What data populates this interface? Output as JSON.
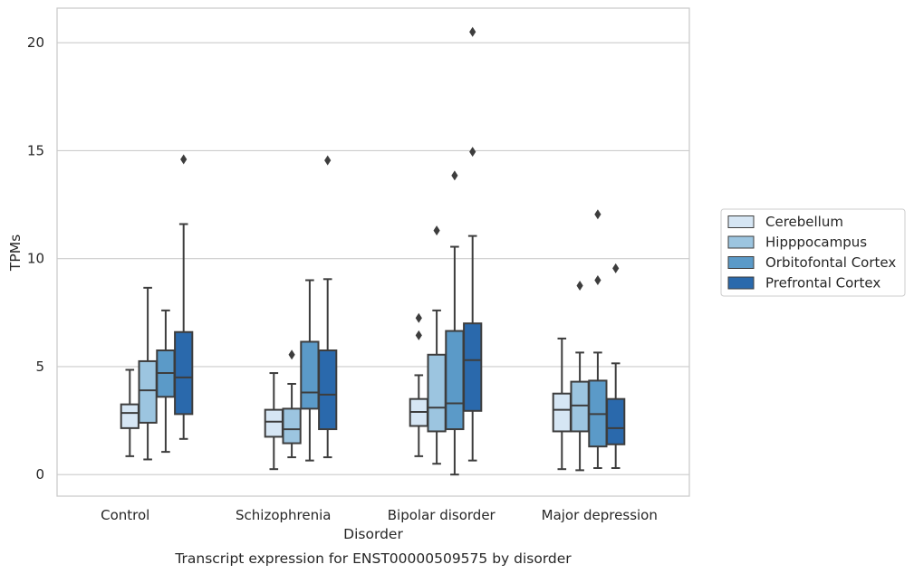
{
  "caption": "Transcript expression for ENST00000509575 by disorder",
  "chart_data": {
    "type": "boxplot",
    "xlabel": "Disorder",
    "ylabel": "TPMs",
    "ylim": [
      -1,
      21.6
    ],
    "yticks": [
      0,
      5,
      10,
      15,
      20
    ],
    "grid": true,
    "legend_position": "right",
    "categories": [
      "Control",
      "Schizophrenia",
      "Bipolar disorder",
      "Major depression"
    ],
    "series": [
      {
        "name": "Cerebellum",
        "color": "#d6e6f4",
        "boxes": [
          {
            "whisker_low": 0.85,
            "q1": 2.15,
            "median": 2.85,
            "q3": 3.25,
            "whisker_high": 4.85,
            "outliers": []
          },
          {
            "whisker_low": 0.25,
            "q1": 1.75,
            "median": 2.45,
            "q3": 3.0,
            "whisker_high": 4.7,
            "outliers": []
          },
          {
            "whisker_low": 0.85,
            "q1": 2.25,
            "median": 2.9,
            "q3": 3.5,
            "whisker_high": 4.6,
            "outliers": [
              6.45,
              7.25
            ]
          },
          {
            "whisker_low": 0.25,
            "q1": 2.0,
            "median": 3.0,
            "q3": 3.75,
            "whisker_high": 6.3,
            "outliers": []
          }
        ]
      },
      {
        "name": "Hipppocampus",
        "color": "#9cc5e0",
        "boxes": [
          {
            "whisker_low": 0.7,
            "q1": 2.4,
            "median": 3.9,
            "q3": 5.25,
            "whisker_high": 8.65,
            "outliers": []
          },
          {
            "whisker_low": 0.8,
            "q1": 1.45,
            "median": 2.1,
            "q3": 3.05,
            "whisker_high": 4.2,
            "outliers": [
              5.55
            ]
          },
          {
            "whisker_low": 0.5,
            "q1": 2.0,
            "median": 3.1,
            "q3": 5.55,
            "whisker_high": 7.6,
            "outliers": [
              11.3
            ]
          },
          {
            "whisker_low": 0.2,
            "q1": 2.0,
            "median": 3.2,
            "q3": 4.3,
            "whisker_high": 5.65,
            "outliers": [
              8.75
            ]
          }
        ]
      },
      {
        "name": "Orbitofontal Cortex",
        "color": "#5b9ac8",
        "boxes": [
          {
            "whisker_low": 1.05,
            "q1": 3.6,
            "median": 4.7,
            "q3": 5.75,
            "whisker_high": 7.6,
            "outliers": []
          },
          {
            "whisker_low": 0.65,
            "q1": 3.05,
            "median": 3.8,
            "q3": 6.15,
            "whisker_high": 9.0,
            "outliers": []
          },
          {
            "whisker_low": 0.0,
            "q1": 2.1,
            "median": 3.3,
            "q3": 6.65,
            "whisker_high": 10.55,
            "outliers": [
              13.85
            ]
          },
          {
            "whisker_low": 0.3,
            "q1": 1.3,
            "median": 2.8,
            "q3": 4.35,
            "whisker_high": 5.65,
            "outliers": [
              9.0,
              12.05
            ]
          }
        ]
      },
      {
        "name": "Prefrontal Cortex",
        "color": "#2a69ac",
        "boxes": [
          {
            "whisker_low": 1.65,
            "q1": 2.8,
            "median": 4.5,
            "q3": 6.6,
            "whisker_high": 11.6,
            "outliers": [
              14.6
            ]
          },
          {
            "whisker_low": 0.8,
            "q1": 2.1,
            "median": 3.7,
            "q3": 5.75,
            "whisker_high": 9.05,
            "outliers": [
              14.55
            ]
          },
          {
            "whisker_low": 0.65,
            "q1": 2.95,
            "median": 5.3,
            "q3": 7.0,
            "whisker_high": 11.05,
            "outliers": [
              14.95,
              20.5
            ]
          },
          {
            "whisker_low": 0.3,
            "q1": 1.4,
            "median": 2.15,
            "q3": 3.5,
            "whisker_high": 5.15,
            "outliers": [
              9.55
            ]
          }
        ]
      }
    ]
  }
}
